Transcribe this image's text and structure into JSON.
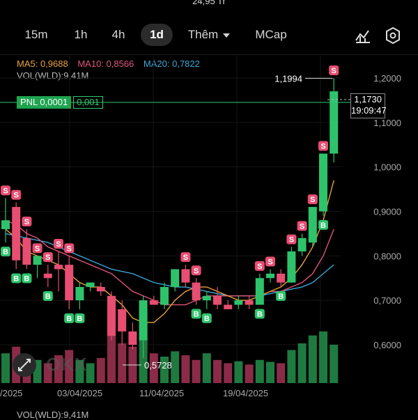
{
  "top_readout": "24,95 Tr",
  "tabs": [
    {
      "label": "15m",
      "active": false
    },
    {
      "label": "1h",
      "active": false
    },
    {
      "label": "4h",
      "active": false
    },
    {
      "label": "1d",
      "active": true
    },
    {
      "label": "Thêm",
      "active": false
    },
    {
      "label": "MCap",
      "active": false
    }
  ],
  "toolbar_icons": [
    "chart-draw-icon",
    "settings-hex-icon"
  ],
  "ma": {
    "ma5": "MA5: 0,9688",
    "ma10": "MA10: 0,8566",
    "ma20": "MA20: 0,7822",
    "colors": {
      "ma5": "#e9a23b",
      "ma10": "#e0557b",
      "ma20": "#3aa7d8"
    }
  },
  "vol_label": "VOL(WLD):9,41M",
  "pnl": {
    "label": "PNL 0,0001",
    "value": "0,001"
  },
  "price_tag": {
    "price": "1,1730",
    "time": "19:09:47"
  },
  "colors": {
    "up": "#2ec36b",
    "down": "#e84d72",
    "bg": "#000000"
  },
  "watermark": "OKX",
  "chart_data": {
    "type": "candlestick",
    "y_axis_labels": [
      "1,2000",
      "1,1000",
      "1,0000",
      "0,9000",
      "0,8000",
      "0,7000",
      "0,6000"
    ],
    "y_axis_values": [
      1.2,
      1.1,
      1.0,
      0.9,
      0.8,
      0.7,
      0.6
    ],
    "x_axis_labels": [
      "/2025",
      "03/04/2025",
      "11/04/2025",
      "19/04/2025"
    ],
    "annotations": {
      "high": "1,1994",
      "low": "0,5728"
    },
    "candles": [
      {
        "o": 0.86,
        "h": 0.93,
        "l": 0.83,
        "c": 0.88
      },
      {
        "o": 0.91,
        "h": 0.92,
        "l": 0.77,
        "c": 0.79
      },
      {
        "o": 0.84,
        "h": 0.86,
        "l": 0.77,
        "c": 0.78
      },
      {
        "o": 0.78,
        "h": 0.8,
        "l": 0.75,
        "c": 0.8
      },
      {
        "o": 0.76,
        "h": 0.78,
        "l": 0.73,
        "c": 0.75
      },
      {
        "o": 0.78,
        "h": 0.81,
        "l": 0.72,
        "c": 0.77
      },
      {
        "o": 0.78,
        "h": 0.8,
        "l": 0.68,
        "c": 0.7
      },
      {
        "o": 0.7,
        "h": 0.74,
        "l": 0.68,
        "c": 0.73
      },
      {
        "o": 0.73,
        "h": 0.74,
        "l": 0.72,
        "c": 0.74
      },
      {
        "o": 0.73,
        "h": 0.74,
        "l": 0.71,
        "c": 0.72
      },
      {
        "o": 0.71,
        "h": 0.72,
        "l": 0.61,
        "c": 0.62
      },
      {
        "o": 0.68,
        "h": 0.7,
        "l": 0.6,
        "c": 0.63
      },
      {
        "o": 0.63,
        "h": 0.65,
        "l": 0.59,
        "c": 0.6
      },
      {
        "o": 0.61,
        "h": 0.71,
        "l": 0.57,
        "c": 0.7
      },
      {
        "o": 0.7,
        "h": 0.71,
        "l": 0.69,
        "c": 0.69
      },
      {
        "o": 0.69,
        "h": 0.74,
        "l": 0.68,
        "c": 0.73
      },
      {
        "o": 0.73,
        "h": 0.77,
        "l": 0.72,
        "c": 0.77
      },
      {
        "o": 0.77,
        "h": 0.78,
        "l": 0.73,
        "c": 0.74
      },
      {
        "o": 0.74,
        "h": 0.75,
        "l": 0.69,
        "c": 0.7
      },
      {
        "o": 0.7,
        "h": 0.72,
        "l": 0.68,
        "c": 0.71
      },
      {
        "o": 0.71,
        "h": 0.73,
        "l": 0.68,
        "c": 0.69
      },
      {
        "o": 0.69,
        "h": 0.7,
        "l": 0.68,
        "c": 0.68
      },
      {
        "o": 0.69,
        "h": 0.71,
        "l": 0.68,
        "c": 0.7
      },
      {
        "o": 0.7,
        "h": 0.71,
        "l": 0.68,
        "c": 0.69
      },
      {
        "o": 0.69,
        "h": 0.76,
        "l": 0.69,
        "c": 0.75
      },
      {
        "o": 0.75,
        "h": 0.77,
        "l": 0.74,
        "c": 0.76
      },
      {
        "o": 0.76,
        "h": 0.77,
        "l": 0.73,
        "c": 0.74
      },
      {
        "o": 0.74,
        "h": 0.82,
        "l": 0.74,
        "c": 0.81
      },
      {
        "o": 0.81,
        "h": 0.85,
        "l": 0.8,
        "c": 0.84
      },
      {
        "o": 0.83,
        "h": 0.91,
        "l": 0.82,
        "c": 0.91
      },
      {
        "o": 0.9,
        "h": 1.03,
        "l": 0.89,
        "c": 1.03
      },
      {
        "o": 1.03,
        "h": 1.2,
        "l": 1.01,
        "c": 1.17
      }
    ],
    "volumes": [
      0.45,
      0.55,
      0.4,
      0.35,
      0.3,
      0.42,
      0.5,
      0.35,
      0.3,
      0.38,
      0.72,
      0.6,
      0.55,
      0.7,
      0.45,
      0.4,
      0.48,
      0.42,
      0.35,
      0.45,
      0.35,
      0.3,
      0.33,
      0.28,
      0.35,
      0.32,
      0.3,
      0.5,
      0.6,
      0.72,
      0.78,
      0.58
    ],
    "ma5": [
      0.86,
      0.84,
      0.81,
      0.8,
      0.79,
      0.78,
      0.76,
      0.74,
      0.73,
      0.73,
      0.71,
      0.69,
      0.66,
      0.65,
      0.65,
      0.67,
      0.7,
      0.72,
      0.73,
      0.73,
      0.72,
      0.71,
      0.7,
      0.7,
      0.71,
      0.72,
      0.73,
      0.75,
      0.78,
      0.82,
      0.88,
      0.97
    ],
    "ma10": [
      0.88,
      0.87,
      0.85,
      0.84,
      0.82,
      0.81,
      0.8,
      0.79,
      0.78,
      0.77,
      0.76,
      0.74,
      0.72,
      0.71,
      0.7,
      0.69,
      0.69,
      0.69,
      0.7,
      0.71,
      0.71,
      0.71,
      0.71,
      0.71,
      0.71,
      0.72,
      0.72,
      0.73,
      0.74,
      0.76,
      0.8,
      0.86
    ],
    "ma20": [
      0.85,
      0.845,
      0.84,
      0.835,
      0.83,
      0.82,
      0.81,
      0.8,
      0.79,
      0.78,
      0.77,
      0.765,
      0.76,
      0.75,
      0.74,
      0.735,
      0.73,
      0.73,
      0.725,
      0.72,
      0.715,
      0.71,
      0.71,
      0.71,
      0.71,
      0.715,
      0.72,
      0.725,
      0.73,
      0.74,
      0.76,
      0.78
    ],
    "markers": [
      {
        "i": 0,
        "type": "S"
      },
      {
        "i": 0,
        "type": "B"
      },
      {
        "i": 1,
        "type": "S"
      },
      {
        "i": 1,
        "type": "B"
      },
      {
        "i": 2,
        "type": "S"
      },
      {
        "i": 3,
        "type": "S"
      },
      {
        "i": 4,
        "type": "S"
      },
      {
        "i": 2,
        "type": "B"
      },
      {
        "i": 5,
        "type": "S"
      },
      {
        "i": 4,
        "type": "B"
      },
      {
        "i": 6,
        "type": "S"
      },
      {
        "i": 6,
        "type": "B"
      },
      {
        "i": 7,
        "type": "B"
      },
      {
        "i": 17,
        "type": "S"
      },
      {
        "i": 18,
        "type": "S"
      },
      {
        "i": 19,
        "type": "B"
      },
      {
        "i": 18,
        "type": "B"
      },
      {
        "i": 24,
        "type": "S"
      },
      {
        "i": 25,
        "type": "S"
      },
      {
        "i": 24,
        "type": "B"
      },
      {
        "i": 26,
        "type": "B"
      },
      {
        "i": 27,
        "type": "S"
      },
      {
        "i": 28,
        "type": "S"
      },
      {
        "i": 29,
        "type": "S"
      },
      {
        "i": 30,
        "type": "S"
      },
      {
        "i": 31,
        "type": "S"
      },
      {
        "i": 30,
        "type": "B"
      }
    ]
  }
}
